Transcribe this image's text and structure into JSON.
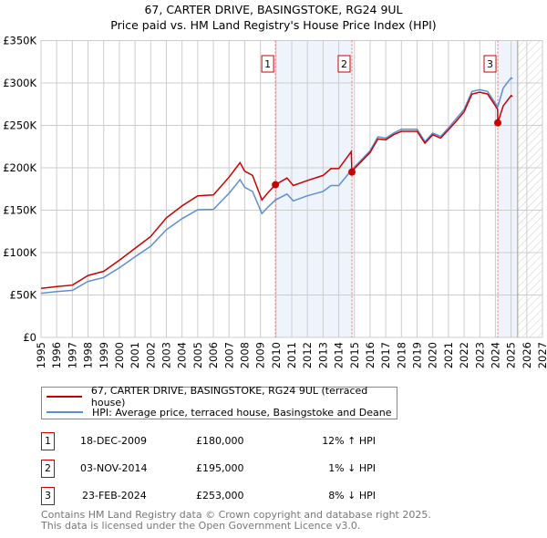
{
  "title_line1": "67, CARTER DRIVE, BASINGSTOKE, RG24 9UL",
  "title_line2": "Price paid vs. HM Land Registry's House Price Index (HPI)",
  "chart_data": {
    "type": "line",
    "title": "67, CARTER DRIVE, BASINGSTOKE, RG24 9UL — Price paid vs. HM Land Registry's House Price Index (HPI)",
    "xlabel": "",
    "ylabel": "",
    "xlim": [
      1995,
      2027
    ],
    "ylim": [
      0,
      350000
    ],
    "x_ticks": [
      "1995",
      "1996",
      "1997",
      "1998",
      "1999",
      "2000",
      "2001",
      "2002",
      "2003",
      "2004",
      "2005",
      "2006",
      "2007",
      "2008",
      "2009",
      "2010",
      "2011",
      "2012",
      "2013",
      "2014",
      "2015",
      "2016",
      "2017",
      "2018",
      "2019",
      "2020",
      "2021",
      "2022",
      "2023",
      "2024",
      "2025",
      "2026",
      "2027"
    ],
    "y_ticks": [
      {
        "value": 0,
        "label": "£0"
      },
      {
        "value": 50000,
        "label": "£50K"
      },
      {
        "value": 100000,
        "label": "£100K"
      },
      {
        "value": 150000,
        "label": "£150K"
      },
      {
        "value": 200000,
        "label": "£200K"
      },
      {
        "value": 250000,
        "label": "£250K"
      },
      {
        "value": 300000,
        "label": "£300K"
      },
      {
        "value": 350000,
        "label": "£350K"
      }
    ],
    "grid": true,
    "series": [
      {
        "name": "67, CARTER DRIVE, BASINGSTOKE, RG24 9UL (terraced house)",
        "color": "#cc0000",
        "x": [
          1995,
          1996,
          1997,
          1998,
          1999,
          2000,
          2001,
          2002,
          2003,
          2004,
          2005,
          2006,
          2007,
          2007.7,
          2008,
          2008.5,
          2009.1,
          2009.5,
          2009.96,
          2010.7,
          2011.1,
          2012,
          2013,
          2013.5,
          2014,
          2014.8,
          2014.84,
          2015,
          2016,
          2016.5,
          2017,
          2017.5,
          2018,
          2019,
          2019.5,
          2020,
          2020.5,
          2021,
          2021.5,
          2022,
          2022.5,
          2023,
          2023.5,
          2024,
          2024.14,
          2024.15,
          2024.5,
          2025,
          2025.1
        ],
        "y": [
          57700,
          60000,
          61600,
          73000,
          78000,
          91000,
          105000,
          119000,
          141000,
          155000,
          167000,
          168000,
          189000,
          206000,
          196000,
          191000,
          162000,
          171000,
          180000,
          188000,
          179000,
          185000,
          191000,
          199000,
          199000,
          219000,
          195000,
          199000,
          218000,
          234000,
          233000,
          239000,
          243000,
          243000,
          229000,
          239000,
          235000,
          245000,
          255000,
          266000,
          287000,
          289000,
          287000,
          273000,
          269000,
          253000,
          273000,
          285000,
          284000
        ]
      },
      {
        "name": "HPI: Average price, terraced house, Basingstoke and Deane",
        "color": "#5b8fd4",
        "x": [
          1995,
          1996,
          1997,
          1998,
          1999,
          2000,
          2001,
          2002,
          2003,
          2004,
          2005,
          2006,
          2007,
          2007.7,
          2008,
          2008.5,
          2009.1,
          2009.5,
          2009.96,
          2010.7,
          2011.1,
          2012,
          2013,
          2013.5,
          2014,
          2014.8,
          2015,
          2016,
          2016.5,
          2017,
          2017.5,
          2018,
          2019,
          2019.5,
          2020,
          2020.5,
          2021,
          2021.5,
          2022,
          2022.5,
          2023,
          2023.5,
          2024,
          2024.15,
          2024.5,
          2025,
          2025.1
        ],
        "y": [
          52000,
          54000,
          55500,
          66000,
          70600,
          82000,
          95000,
          107500,
          127000,
          140000,
          150500,
          151000,
          170000,
          186000,
          177000,
          172000,
          146000,
          154000,
          162000,
          169000,
          161000,
          167000,
          172000,
          179000,
          179000,
          197000,
          201000,
          220000,
          236500,
          235000,
          241000,
          245500,
          245500,
          231000,
          241000,
          237000,
          247000,
          258000,
          269000,
          290000,
          292000,
          290000,
          276000,
          272000,
          294000,
          306000,
          305000
        ]
      }
    ],
    "sales": [
      {
        "id": "1",
        "x": 2009.96,
        "date": "18-DEC-2009",
        "price": 180000,
        "price_label": "£180,000",
        "hpi_diff": "12% ↑ HPI"
      },
      {
        "id": "2",
        "x": 2014.84,
        "date": "03-NOV-2014",
        "price": 195000,
        "price_label": "£195,000",
        "hpi_diff": "1% ↓ HPI"
      },
      {
        "id": "3",
        "x": 2024.15,
        "date": "23-FEB-2024",
        "price": 253000,
        "price_label": "£253,000",
        "hpi_diff": "8% ↓ HPI"
      }
    ],
    "shaded_ranges": [
      [
        2009.96,
        2014.84
      ],
      [
        2024.15,
        2025.42
      ]
    ],
    "forecast_hatch_from": 2025.42,
    "legend_position": "below"
  },
  "footer_line1": "Contains HM Land Registry data © Crown copyright and database right 2025.",
  "footer_line2": "This data is licensed under the Open Government Licence v3.0."
}
